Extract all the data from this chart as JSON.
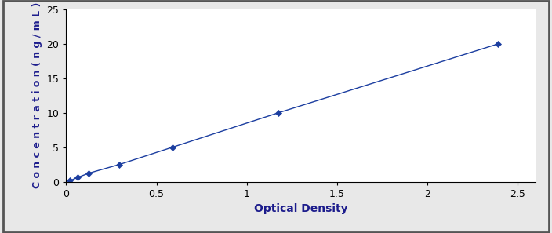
{
  "x_data": [
    0.021,
    0.063,
    0.126,
    0.294,
    0.588,
    1.176,
    2.394
  ],
  "y_data": [
    0.156,
    0.625,
    1.25,
    2.5,
    5.0,
    10.0,
    20.0
  ],
  "line_color": "#1c3ea0",
  "marker_color": "#1c3ea0",
  "marker_style": "D",
  "marker_size": 4,
  "line_width": 1.0,
  "xlabel": "Optical Density",
  "ylabel": "Concentration(ng/mL)",
  "xlim": [
    0,
    2.6
  ],
  "ylim": [
    0,
    25
  ],
  "xticks": [
    0,
    0.5,
    1.0,
    1.5,
    2.0,
    2.5
  ],
  "yticks": [
    0,
    5,
    10,
    15,
    20,
    25
  ],
  "xlabel_fontsize": 10,
  "ylabel_fontsize": 9,
  "tick_fontsize": 9,
  "fig_background": "#e8e8e8",
  "plot_background": "#ffffff",
  "border_color": "#555555",
  "text_color": "#000000",
  "label_color": "#1c1c8c"
}
